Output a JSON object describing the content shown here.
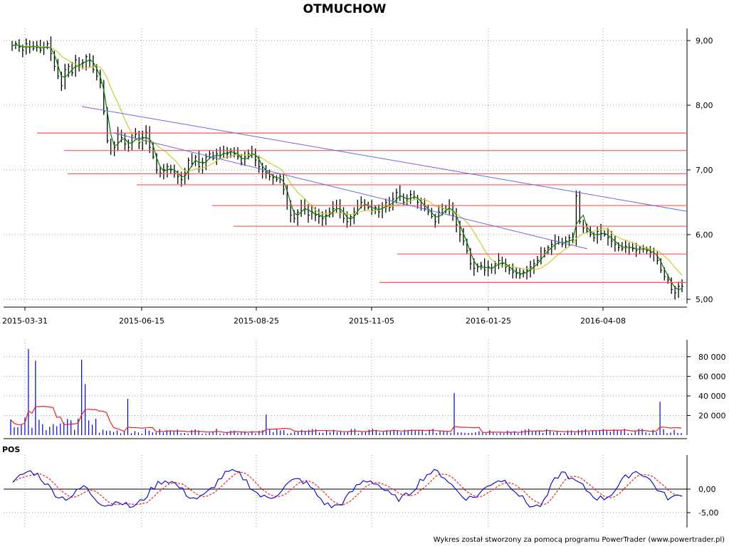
{
  "chart_data": [
    {
      "type": "line",
      "subtype": "ohlc-bars",
      "title": "OTMUCHOW",
      "x_ticks": [
        "2015-03-31",
        "2015-06-15",
        "2015-08-25",
        "2015-11-05",
        "2016-01-25",
        "2016-04-08"
      ],
      "y_ticks": [
        "9,00",
        "8,00",
        "7,00",
        "6,00",
        "5,00"
      ],
      "ylim": [
        4.95,
        9.1
      ],
      "grid": true,
      "close_series": [
        8.92,
        8.95,
        8.9,
        8.85,
        8.95,
        8.9,
        8.88,
        8.92,
        8.85,
        8.9,
        8.95,
        8.8,
        8.6,
        8.45,
        8.3,
        8.55,
        8.6,
        8.5,
        8.7,
        8.62,
        8.65,
        8.75,
        8.7,
        8.55,
        8.45,
        8.35,
        7.9,
        7.45,
        7.3,
        7.35,
        7.55,
        7.5,
        7.4,
        7.35,
        7.5,
        7.55,
        7.42,
        7.5,
        7.58,
        7.35,
        7.2,
        7.0,
        6.95,
        7.0,
        7.05,
        7.0,
        6.95,
        6.9,
        6.85,
        6.95,
        7.15,
        7.1,
        7.2,
        7.05,
        7.1,
        7.2,
        7.25,
        7.18,
        7.25,
        7.22,
        7.3,
        7.25,
        7.3,
        7.25,
        7.2,
        7.1,
        7.2,
        7.25,
        7.3,
        7.15,
        7.05,
        6.98,
        6.95,
        6.9,
        6.88,
        6.85,
        6.9,
        6.7,
        6.45,
        6.3,
        6.25,
        6.35,
        6.45,
        6.4,
        6.3,
        6.35,
        6.3,
        6.28,
        6.25,
        6.3,
        6.35,
        6.4,
        6.45,
        6.35,
        6.25,
        6.2,
        6.28,
        6.35,
        6.45,
        6.5,
        6.45,
        6.42,
        6.38,
        6.42,
        6.35,
        6.45,
        6.5,
        6.42,
        6.55,
        6.65,
        6.6,
        6.5,
        6.55,
        6.62,
        6.58,
        6.5,
        6.45,
        6.4,
        6.35,
        6.28,
        6.2,
        6.35,
        6.4,
        6.38,
        6.45,
        6.3,
        6.15,
        6.0,
        5.9,
        5.75,
        5.55,
        5.48,
        5.5,
        5.52,
        5.45,
        5.5,
        5.48,
        5.55,
        5.6,
        5.55,
        5.5,
        5.45,
        5.42,
        5.4,
        5.38,
        5.42,
        5.45,
        5.5,
        5.55,
        5.6,
        5.7,
        5.75,
        5.8,
        5.85,
        5.9,
        5.88,
        5.85,
        5.9,
        5.95,
        5.92,
        6.6,
        6.2,
        6.1,
        6.05,
        6.0,
        5.95,
        6.05,
        6.02,
        6.0,
        5.95,
        5.9,
        5.85,
        5.8,
        5.78,
        5.82,
        5.8,
        5.78,
        5.75,
        5.8,
        5.78,
        5.75,
        5.72,
        5.7,
        5.6,
        5.45,
        5.35,
        5.3,
        5.15,
        5.1,
        5.2,
        5.2
      ]
    },
    {
      "type": "bar",
      "title": "",
      "y_ticks": [
        "80 000",
        "60 000",
        "40 000",
        "20 000"
      ],
      "ylim": [
        0,
        90000
      ],
      "spikes": [
        88000,
        77000,
        76000,
        52000,
        43000,
        37000,
        34000,
        21000
      ]
    },
    {
      "type": "line",
      "title": "POS",
      "y_ticks": [
        "0,00",
        "-5,00"
      ],
      "ylim": [
        -8,
        5
      ]
    }
  ],
  "footer": {
    "credit": "Wykres został stworzony za pomocą programu PowerTrader (www.powertrader.pl)"
  },
  "colors": {
    "bars": "#000000",
    "ma_short": "#008000",
    "ma_long": "#cccc33",
    "support": "#ff5555",
    "trend": "#6666ee",
    "volume": "#0000cc",
    "volume_avg": "#ee2222",
    "pos_main": "#0000cc",
    "pos_signal": "#ee2222"
  }
}
